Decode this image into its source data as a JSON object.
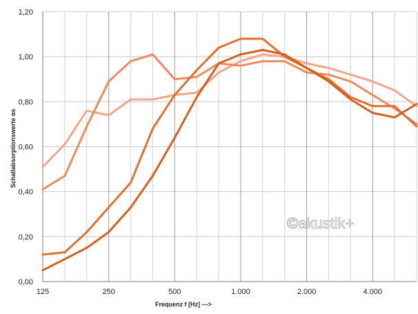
{
  "chart_data": {
    "type": "line",
    "xlabel": "Frequenz f  [Hz]  --->",
    "ylabel": "Schallabsorptionswerte  αs",
    "x_tick_labels": [
      "125",
      "250",
      "500",
      "1.000",
      "2.000",
      "4.000"
    ],
    "y_tick_labels": [
      "0,00",
      "0,20",
      "0,40",
      "0,60",
      "0,80",
      "1,00",
      "1,20"
    ],
    "ylim": [
      0,
      1.2
    ],
    "x": [
      125,
      160,
      200,
      250,
      315,
      400,
      500,
      630,
      800,
      1000,
      1250,
      1600,
      2000,
      2500,
      3150,
      4000,
      5000,
      6300
    ],
    "grid": true,
    "watermark": "©akustik+",
    "series": [
      {
        "color": "#f2a689",
        "values": [
          0.51,
          0.61,
          0.76,
          0.74,
          0.81,
          0.81,
          0.83,
          0.84,
          0.93,
          0.98,
          1.01,
          1.0,
          0.97,
          0.95,
          0.92,
          0.89,
          0.85,
          0.78
        ]
      },
      {
        "color": "#ec8a5c",
        "values": [
          0.41,
          0.47,
          0.69,
          0.89,
          0.98,
          1.01,
          0.9,
          0.91,
          0.97,
          0.96,
          0.98,
          0.98,
          0.93,
          0.92,
          0.89,
          0.83,
          0.77,
          0.7
        ]
      },
      {
        "color": "#e0702f",
        "values": [
          0.12,
          0.13,
          0.22,
          0.33,
          0.44,
          0.68,
          0.83,
          0.94,
          1.04,
          1.08,
          1.08,
          1.0,
          0.95,
          0.9,
          0.82,
          0.78,
          0.78,
          0.69
        ]
      },
      {
        "color": "#d4601f",
        "values": [
          0.05,
          0.1,
          0.15,
          0.22,
          0.33,
          0.47,
          0.64,
          0.82,
          0.97,
          1.01,
          1.03,
          1.01,
          0.95,
          0.89,
          0.81,
          0.75,
          0.73,
          0.79
        ]
      }
    ]
  }
}
